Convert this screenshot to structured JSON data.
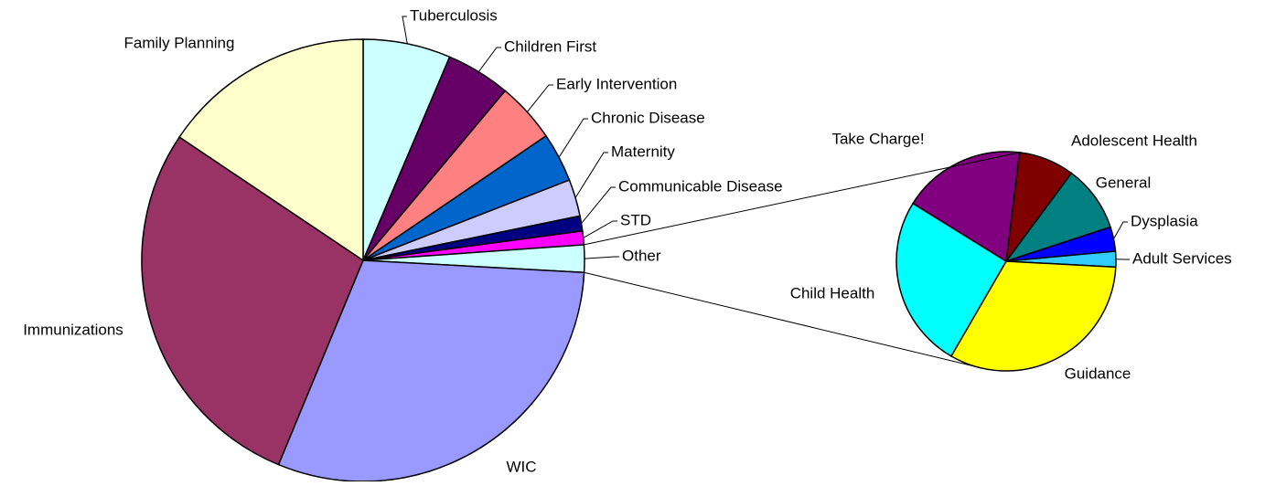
{
  "chart_data": [
    {
      "type": "pie",
      "categories": [
        "Tuberculosis",
        "Children First",
        "Early Intervention",
        "Chronic Disease",
        "Maternity",
        "Communicable Disease",
        "STD",
        "Other",
        "WIC",
        "Immunizations",
        "Family Planning"
      ],
      "values": [
        6.4,
        4.7,
        4.4,
        3.6,
        2.7,
        1.1,
        1.0,
        2.0,
        30.4,
        28.2,
        15.6
      ],
      "colors": [
        "#ccffff",
        "#660066",
        "#ff8080",
        "#0066cc",
        "#ccccff",
        "#000080",
        "#ff00ff",
        "#ccffff",
        "#9999ff",
        "#993366",
        "#ffffcc"
      ]
    },
    {
      "type": "pie",
      "categories": [
        "Adolescent Health",
        "General",
        "Dysplasia",
        "Adult Services",
        "Guidance",
        "Child Health",
        "Take Charge!"
      ],
      "values": [
        8.2,
        9.8,
        3.6,
        2.3,
        32.5,
        25.5,
        18.1
      ],
      "colors": [
        "#800000",
        "#008080",
        "#0000ff",
        "#33ccff",
        "#ffff00",
        "#00ffff",
        "#800080"
      ]
    }
  ]
}
